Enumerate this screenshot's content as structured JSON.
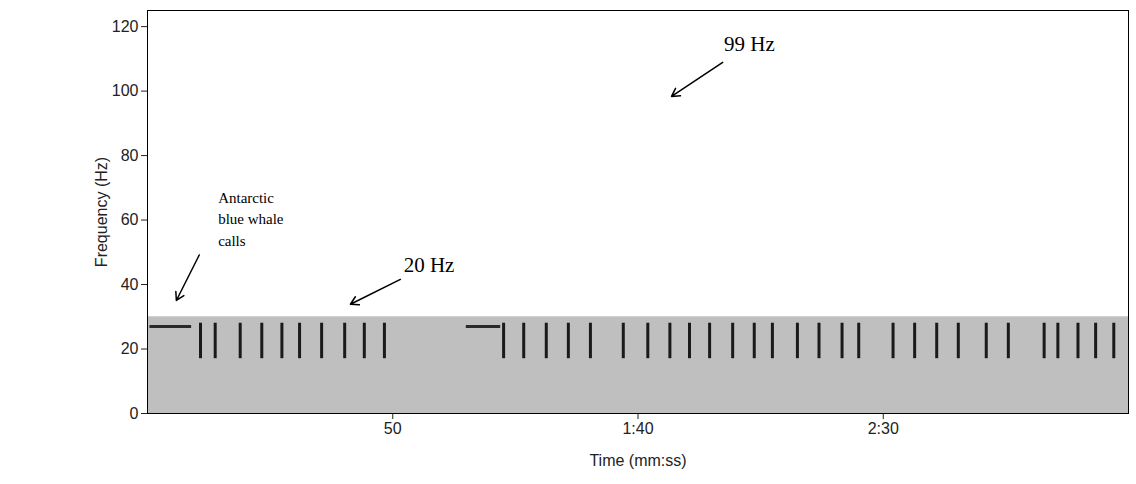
{
  "chart_data": {
    "type": "spectrogram",
    "x_label": "Time (mm:ss)",
    "y_label": "Frequency (Hz)",
    "xlim": [
      0,
      200
    ],
    "xticks": [
      50,
      {
        "value": 100,
        "label": "1:40"
      },
      {
        "value": 150,
        "label": "2:30"
      }
    ],
    "ylim": [
      0,
      125
    ],
    "yticks": [
      0,
      20,
      40,
      60,
      80,
      100,
      120
    ],
    "grid": false,
    "noise_band": [
      0,
      30
    ],
    "call_band": [
      17,
      28
    ],
    "call_times": [
      10.8,
      13.8,
      18.9,
      23.3,
      27.4,
      31,
      35.5,
      40.2,
      44.2,
      48.3,
      72.6,
      76.7,
      81.3,
      85.8,
      90.3,
      97,
      102,
      106.5,
      110.5,
      114.6,
      119.3,
      123.7,
      127.4,
      132.5,
      136.9,
      141.6,
      145,
      152,
      156.4,
      160.9,
      165.3,
      171,
      175.5,
      182.8,
      185.6,
      189.7,
      193.3,
      197
    ],
    "tone_frequency": 27,
    "tone_segments": [
      [
        0.5,
        9
      ],
      [
        65,
        72
      ]
    ],
    "annotations": [
      {
        "text": "Antarctic\nblue whale\ncalls",
        "x": 14.4,
        "y": 60.8,
        "arrow_to": [
          5.7,
          34.5
        ]
      },
      {
        "text": "20 Hz",
        "x": 57.4,
        "y": 46,
        "arrow_to": [
          41,
          33.6
        ]
      },
      {
        "text": "99 Hz",
        "x": 122.7,
        "y": 114.4,
        "arrow_to": [
          106.5,
          98
        ]
      }
    ]
  }
}
